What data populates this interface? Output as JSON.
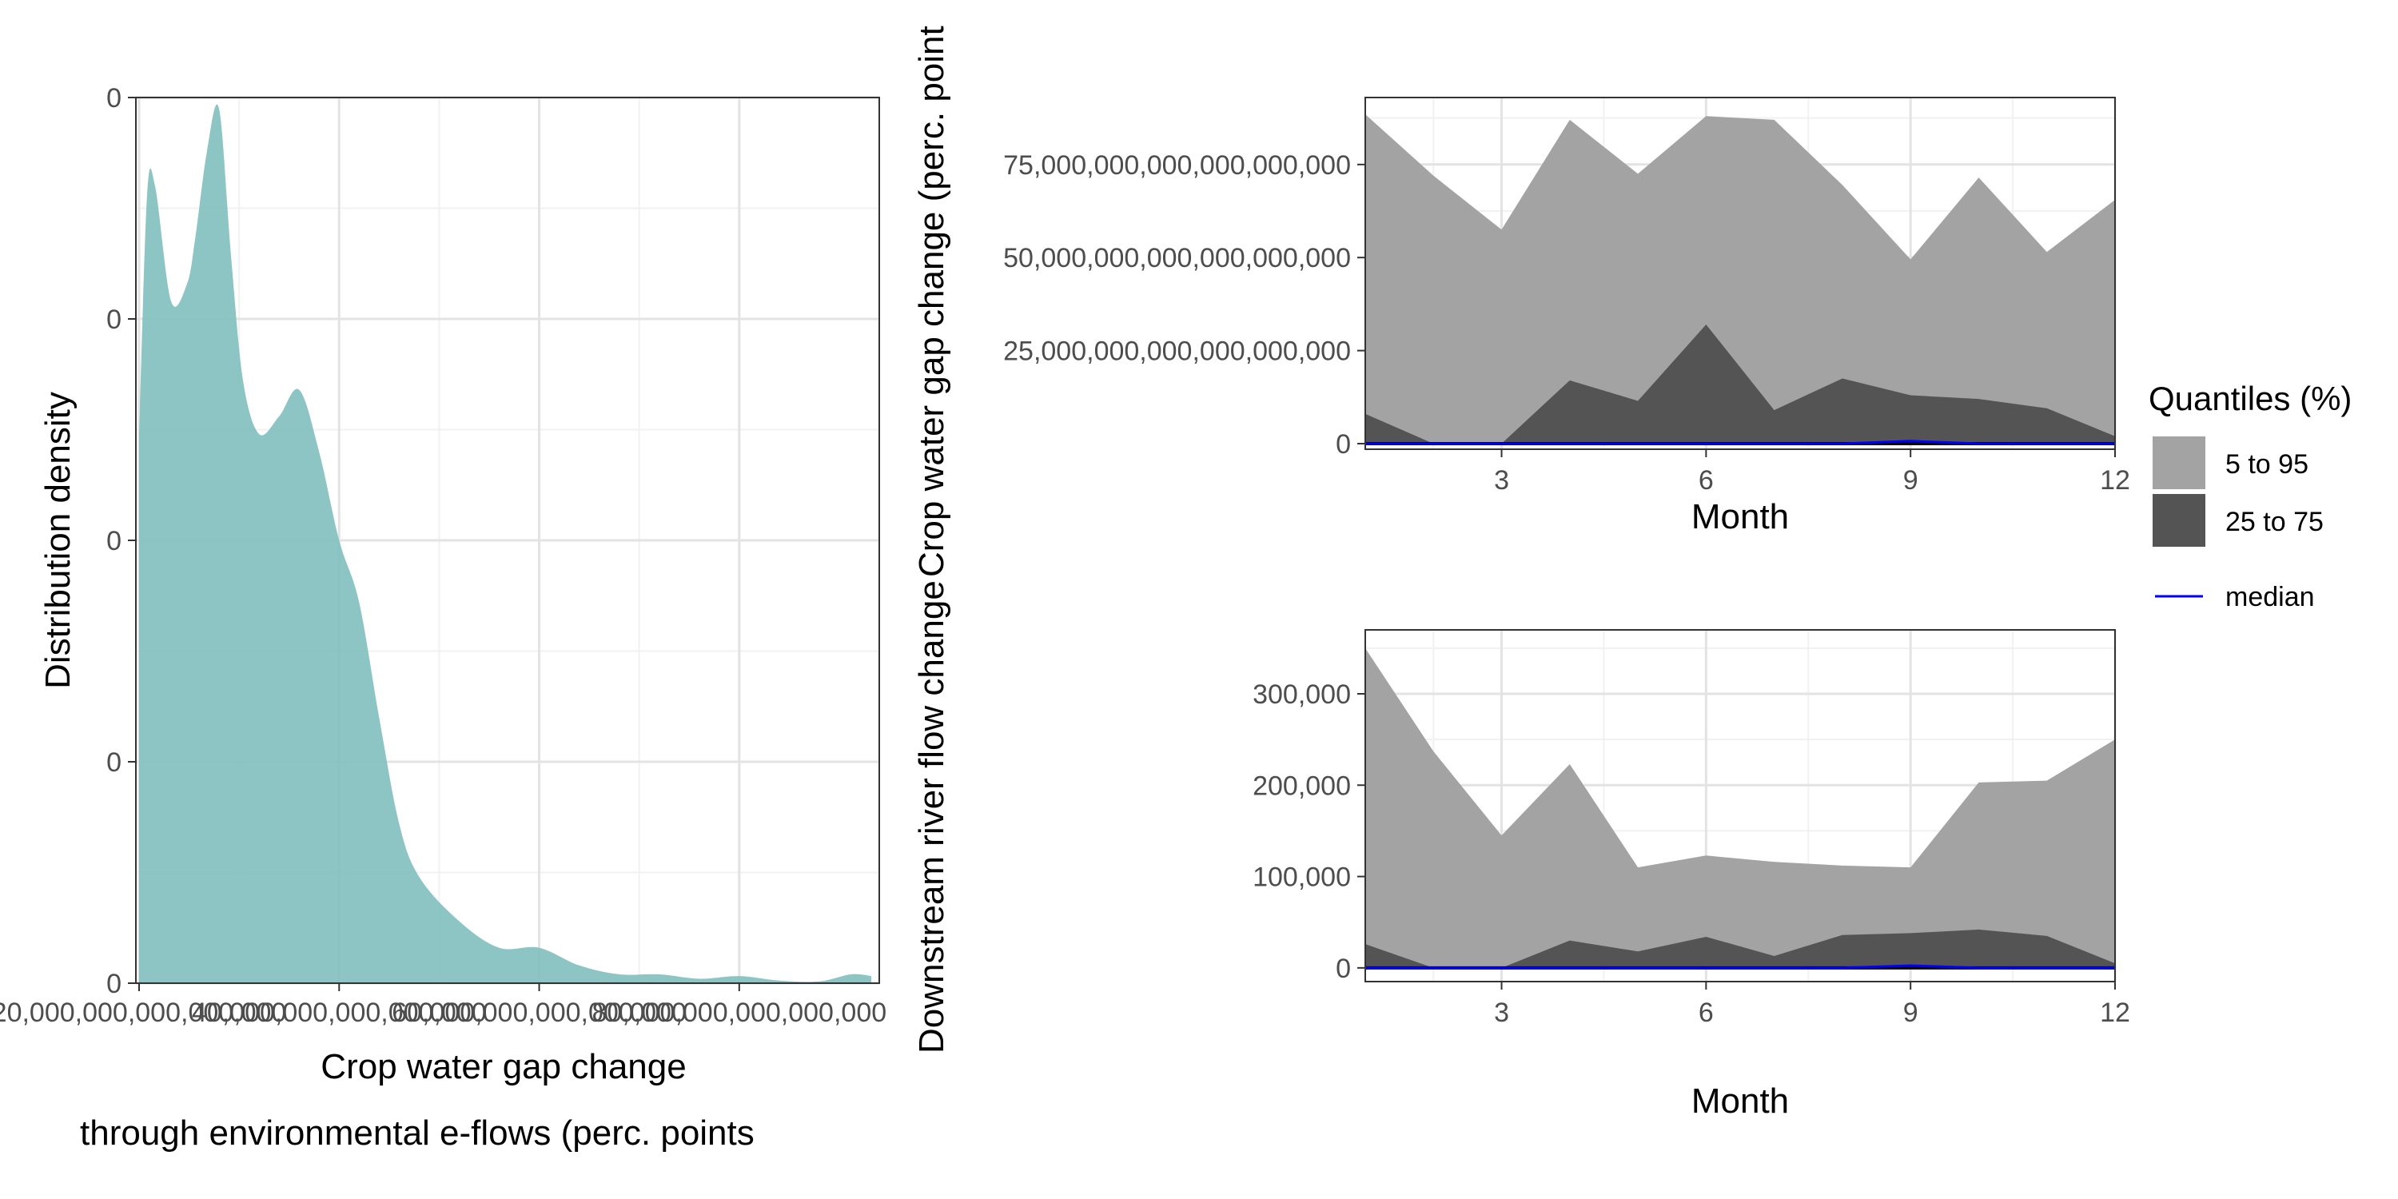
{
  "colors": {
    "density_fill": "#7fbfbd",
    "q5_95": "#a3a3a3",
    "q25_75": "#545454",
    "median": "#0000ff",
    "grid_major": "#e3e3e3",
    "grid_minor": "#f1f1f1",
    "panel_border": "#333333"
  },
  "chart_data": [
    {
      "type": "area",
      "subtype": "density",
      "xlabel": "Crop water gap change",
      "xlabel_line2": "through environmental e-flows (perc. points",
      "ylabel": "Distribution density",
      "xlim": [
        0,
        185
      ],
      "ylim": [
        0,
        100
      ],
      "x_ticks": [
        {
          "value": 0,
          "label": "20,000,000,000,000,000"
        },
        {
          "value": 50,
          "label": "40,000,000,000,000,000"
        },
        {
          "value": 100,
          "label": "60,000,000,000,000,000"
        },
        {
          "value": 150,
          "label": "80,000,000,000,000,000"
        }
      ],
      "y_ticks": [
        {
          "value": 0,
          "label": "0"
        },
        {
          "value": 25,
          "label": "0"
        },
        {
          "value": 50,
          "label": "0"
        },
        {
          "value": 75,
          "label": "0"
        },
        {
          "value": 100,
          "label": "0"
        }
      ],
      "density": {
        "x": [
          0,
          2,
          4,
          8,
          12,
          14,
          17,
          20,
          23,
          26,
          30,
          35,
          40,
          45,
          50,
          55,
          60,
          65,
          70,
          80,
          90,
          100,
          110,
          120,
          130,
          140,
          150,
          160,
          170,
          178,
          183
        ],
        "y": [
          62,
          89,
          90,
          77,
          79,
          84,
          94,
          98.7,
          82,
          68,
          62,
          64,
          67,
          60,
          50,
          43,
          30,
          18,
          12,
          7,
          4,
          4,
          2,
          1,
          1,
          0.5,
          0.8,
          0.3,
          0.2,
          1,
          0.8
        ]
      }
    },
    {
      "type": "area",
      "xlabel": "Month",
      "ylabel": "Crop water gap change (perc. point",
      "xlim": [
        1,
        12
      ],
      "ylim": [
        -1500000000000000000,
        93000000000000000000
      ],
      "x_ticks": [
        {
          "value": 3,
          "label": "3"
        },
        {
          "value": 6,
          "label": "6"
        },
        {
          "value": 9,
          "label": "9"
        },
        {
          "value": 12,
          "label": "12"
        }
      ],
      "y_ticks": [
        {
          "value": 0,
          "label": "0"
        },
        {
          "value": 25000000000000000000,
          "label": "25,000,000,000,000,000,000"
        },
        {
          "value": 50000000000000000000,
          "label": "50,000,000,000,000,000,000"
        },
        {
          "value": 75000000000000000000,
          "label": "75,000,000,000,000,000,000"
        }
      ],
      "x": [
        1,
        2,
        3,
        4,
        5,
        6,
        7,
        8,
        9,
        10,
        11,
        12
      ],
      "series": [
        {
          "name": "5 to 95",
          "values": [
            88500000000000000000,
            72000000000000000000,
            57500000000000000000,
            87000000000000000000,
            72500000000000000000,
            88000000000000000000,
            87000000000000000000,
            69500000000000000000,
            49500000000000000000,
            71500000000000000000,
            51500000000000000000,
            65500000000000000000
          ]
        },
        {
          "name": "25 to 75",
          "values": [
            8000000000000000000,
            0,
            0,
            17000000000000000000,
            11500000000000000000,
            32000000000000000000,
            9000000000000000000,
            17500000000000000000,
            13000000000000000000,
            12000000000000000000,
            9500000000000000000,
            2000000000000000000
          ]
        },
        {
          "name": "median",
          "values": [
            0,
            0,
            0,
            0,
            0,
            0,
            0,
            0,
            700000000000000000,
            0,
            0,
            0
          ]
        }
      ]
    },
    {
      "type": "area",
      "xlabel": "Month",
      "ylabel": "Downstream river flow change",
      "xlim": [
        1,
        12
      ],
      "ylim": [
        -15000,
        370000
      ],
      "x_ticks": [
        {
          "value": 3,
          "label": "3"
        },
        {
          "value": 6,
          "label": "6"
        },
        {
          "value": 9,
          "label": "9"
        },
        {
          "value": 12,
          "label": "12"
        }
      ],
      "y_ticks": [
        {
          "value": 0,
          "label": "0"
        },
        {
          "value": 100000,
          "label": "100,000"
        },
        {
          "value": 200000,
          "label": "200,000"
        },
        {
          "value": 300000,
          "label": "300,000"
        }
      ],
      "x": [
        1,
        2,
        3,
        4,
        5,
        6,
        7,
        8,
        9,
        10,
        11,
        12
      ],
      "series": [
        {
          "name": "5 to 95",
          "values": [
            350000,
            237000,
            145000,
            223000,
            110000,
            123000,
            116000,
            112000,
            110000,
            203000,
            205000,
            250000
          ]
        },
        {
          "name": "25 to 75",
          "values": [
            26000,
            0,
            0,
            30000,
            18000,
            34000,
            13000,
            36000,
            38000,
            42000,
            35000,
            5000
          ]
        },
        {
          "name": "median",
          "values": [
            0,
            0,
            0,
            0,
            0,
            0,
            0,
            0,
            2500,
            0,
            0,
            0
          ]
        }
      ]
    }
  ],
  "legend": {
    "title": "Quantiles (%)",
    "position": "right",
    "items": [
      {
        "label": "5 to 95",
        "kind": "fill",
        "color": "#a3a3a3"
      },
      {
        "label": "25 to 75",
        "kind": "fill",
        "color": "#545454"
      },
      {
        "label": "median",
        "kind": "line",
        "color": "#0000ff"
      }
    ]
  }
}
